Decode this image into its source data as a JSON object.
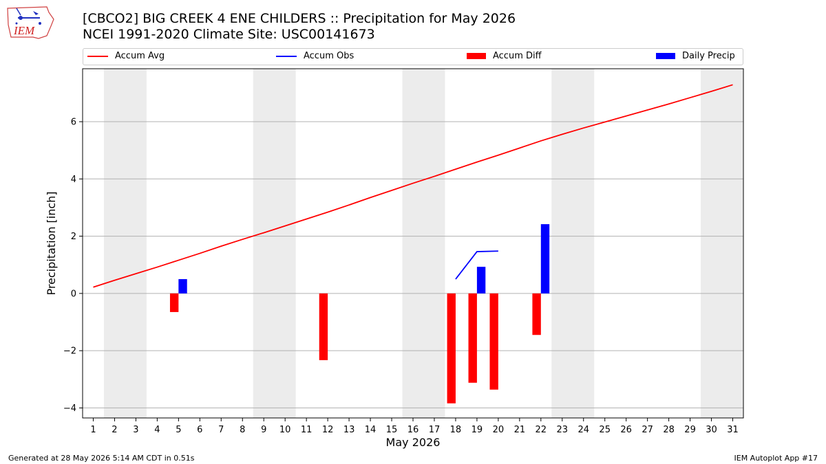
{
  "header": {
    "title_line1": "[CBCO2] BIG CREEK 4 ENE CHILDERS :: Precipitation for May 2026",
    "title_line2": "NCEI 1991-2020 Climate Site: USC00141673"
  },
  "logo": {
    "text": "IEM",
    "icon": "iem-logo-icon"
  },
  "footer": {
    "left": "Generated at 28 May 2026 5:14 AM CDT in 0.51s",
    "right": "IEM Autoplot App #17"
  },
  "colors": {
    "accum_avg": "#ff0000",
    "accum_obs": "#0000ff",
    "accum_diff": "#ff0000",
    "daily_precip": "#0000ff",
    "weekend_shade": "#ececec",
    "grid": "#b0b0b0"
  },
  "chart_data": {
    "type": "bar",
    "xlabel": "May 2026",
    "ylabel": "Precipitation [inch]",
    "xlim": [
      0.5,
      31.5
    ],
    "ylim": [
      -4.35,
      7.85
    ],
    "x_ticks": [
      1,
      2,
      3,
      4,
      5,
      6,
      7,
      8,
      9,
      10,
      11,
      12,
      13,
      14,
      15,
      16,
      17,
      18,
      19,
      20,
      21,
      22,
      23,
      24,
      25,
      26,
      27,
      28,
      29,
      30,
      31
    ],
    "y_ticks": [
      -4,
      -2,
      0,
      2,
      4,
      6
    ],
    "y_tick_labels": [
      "−4",
      "−2",
      "0",
      "2",
      "4",
      "6"
    ],
    "grid": "horizontal",
    "legend_placement": "top, above plot",
    "weekend_shading": [
      [
        1.5,
        3.5
      ],
      [
        8.5,
        10.5
      ],
      [
        15.5,
        17.5
      ],
      [
        22.5,
        24.5
      ],
      [
        29.5,
        31.5
      ]
    ],
    "series": [
      {
        "name": "Accum Avg",
        "kind": "line",
        "x": [
          1,
          2,
          3,
          4,
          5,
          6,
          7,
          8,
          9,
          10,
          11,
          12,
          13,
          14,
          15,
          16,
          17,
          18,
          19,
          20,
          21,
          22,
          23,
          24,
          25,
          26,
          27,
          28,
          29,
          30,
          31
        ],
        "values": [
          0.22,
          0.46,
          0.69,
          0.92,
          1.16,
          1.4,
          1.65,
          1.89,
          2.12,
          2.36,
          2.6,
          2.84,
          3.09,
          3.35,
          3.6,
          3.85,
          4.09,
          4.34,
          4.59,
          4.83,
          5.08,
          5.33,
          5.56,
          5.78,
          5.99,
          6.2,
          6.41,
          6.62,
          6.84,
          7.06,
          7.29
        ]
      },
      {
        "name": "Accum Obs",
        "kind": "line",
        "x": [
          18,
          19,
          20
        ],
        "values": [
          0.5,
          1.46,
          1.48
        ]
      },
      {
        "name": "Accum Diff",
        "kind": "bar",
        "x": [
          5,
          12,
          18,
          19,
          20,
          22
        ],
        "values": [
          -0.65,
          -2.33,
          -3.84,
          -3.12,
          -3.36,
          -1.45
        ]
      },
      {
        "name": "Daily Precip",
        "kind": "bar",
        "x": [
          5,
          19,
          22
        ],
        "values": [
          0.5,
          0.93,
          2.42
        ]
      }
    ]
  }
}
